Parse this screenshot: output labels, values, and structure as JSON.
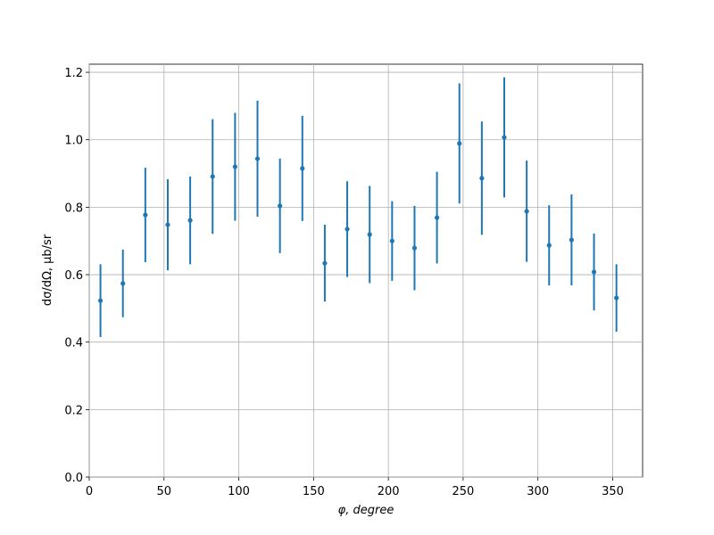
{
  "chart_data": {
    "type": "errorbar",
    "xlabel": "φ, degree",
    "ylabel": "dσ/dΩ, μb/sr",
    "x": [
      7.5,
      22.5,
      37.5,
      52.5,
      67.5,
      82.5,
      97.5,
      112.5,
      127.5,
      142.5,
      157.5,
      172.5,
      187.5,
      202.5,
      217.5,
      232.5,
      247.5,
      262.5,
      277.5,
      292.5,
      307.5,
      322.5,
      337.5,
      352.5
    ],
    "values": [
      0.523,
      0.574,
      0.777,
      0.748,
      0.761,
      0.891,
      0.92,
      0.944,
      0.804,
      0.915,
      0.634,
      0.735,
      0.719,
      0.7,
      0.679,
      0.769,
      0.989,
      0.886,
      1.007,
      0.788,
      0.687,
      0.703,
      0.608,
      0.531
    ],
    "errors": [
      0.108,
      0.1,
      0.14,
      0.135,
      0.13,
      0.17,
      0.16,
      0.172,
      0.14,
      0.156,
      0.114,
      0.142,
      0.144,
      0.118,
      0.125,
      0.136,
      0.178,
      0.168,
      0.178,
      0.15,
      0.119,
      0.135,
      0.114,
      0.1
    ],
    "color": "#1f77b4",
    "xlim": [
      0,
      370
    ],
    "ylim": [
      0,
      1.224
    ],
    "xticks": [
      0,
      50,
      100,
      150,
      200,
      250,
      300,
      350
    ],
    "yticks": [
      {
        "value": 0,
        "label": "0.0"
      },
      0.2,
      0.4,
      0.6,
      0.8,
      {
        "value": 1,
        "label": "1.0"
      },
      1.2
    ],
    "grid": true
  }
}
